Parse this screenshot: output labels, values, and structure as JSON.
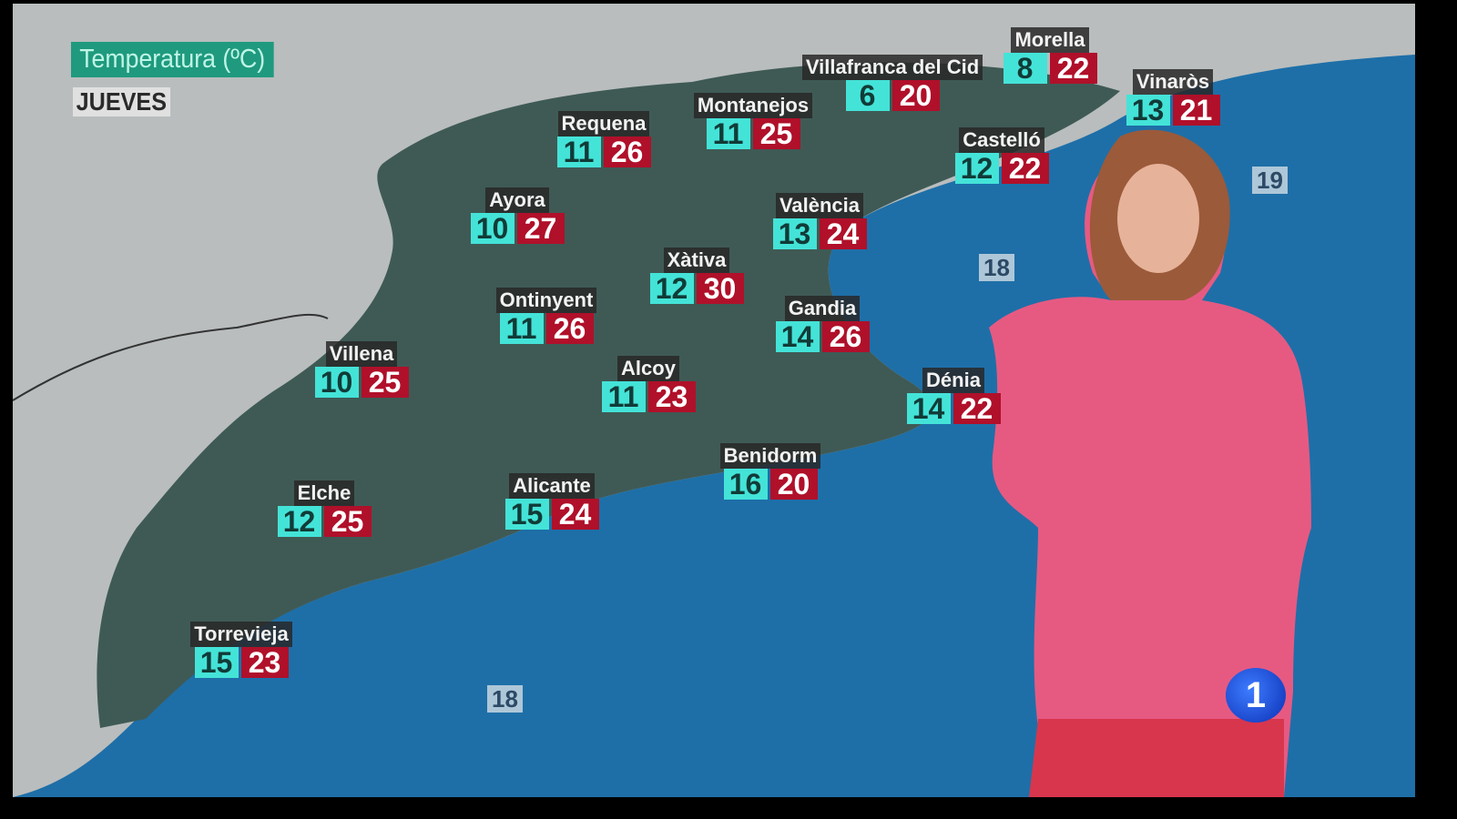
{
  "header": {
    "title": "Temperatura (ºC)",
    "day": "JUEVES"
  },
  "colors": {
    "min_bg": "#44e3d8",
    "max_bg": "#b0102a",
    "title_bg": "#1f9a7e",
    "sea": "#1e6fa8",
    "land": "#3f5a55"
  },
  "cities": [
    {
      "name": "Requena",
      "min": "11",
      "max": "26"
    },
    {
      "name": "Montanejos",
      "min": "11",
      "max": "25"
    },
    {
      "name": "Villafranca del Cid",
      "min": "6",
      "max": "20"
    },
    {
      "name": "Morella",
      "min": "8",
      "max": "22"
    },
    {
      "name": "Vinaròs",
      "min": "13",
      "max": "21"
    },
    {
      "name": "Castelló",
      "min": "12",
      "max": "22"
    },
    {
      "name": "Ayora",
      "min": "10",
      "max": "27"
    },
    {
      "name": "València",
      "min": "13",
      "max": "24"
    },
    {
      "name": "Xàtiva",
      "min": "12",
      "max": "30"
    },
    {
      "name": "Ontinyent",
      "min": "11",
      "max": "26"
    },
    {
      "name": "Gandia",
      "min": "14",
      "max": "26"
    },
    {
      "name": "Villena",
      "min": "10",
      "max": "25"
    },
    {
      "name": "Alcoy",
      "min": "11",
      "max": "23"
    },
    {
      "name": "Dénia",
      "min": "14",
      "max": "22"
    },
    {
      "name": "Benidorm",
      "min": "16",
      "max": "20"
    },
    {
      "name": "Alicante",
      "min": "15",
      "max": "24"
    },
    {
      "name": "Elche",
      "min": "12",
      "max": "25"
    },
    {
      "name": "Torrevieja",
      "min": "15",
      "max": "23"
    }
  ],
  "sea_temps": [
    "19",
    "18",
    "18"
  ],
  "channel_logo": "1"
}
